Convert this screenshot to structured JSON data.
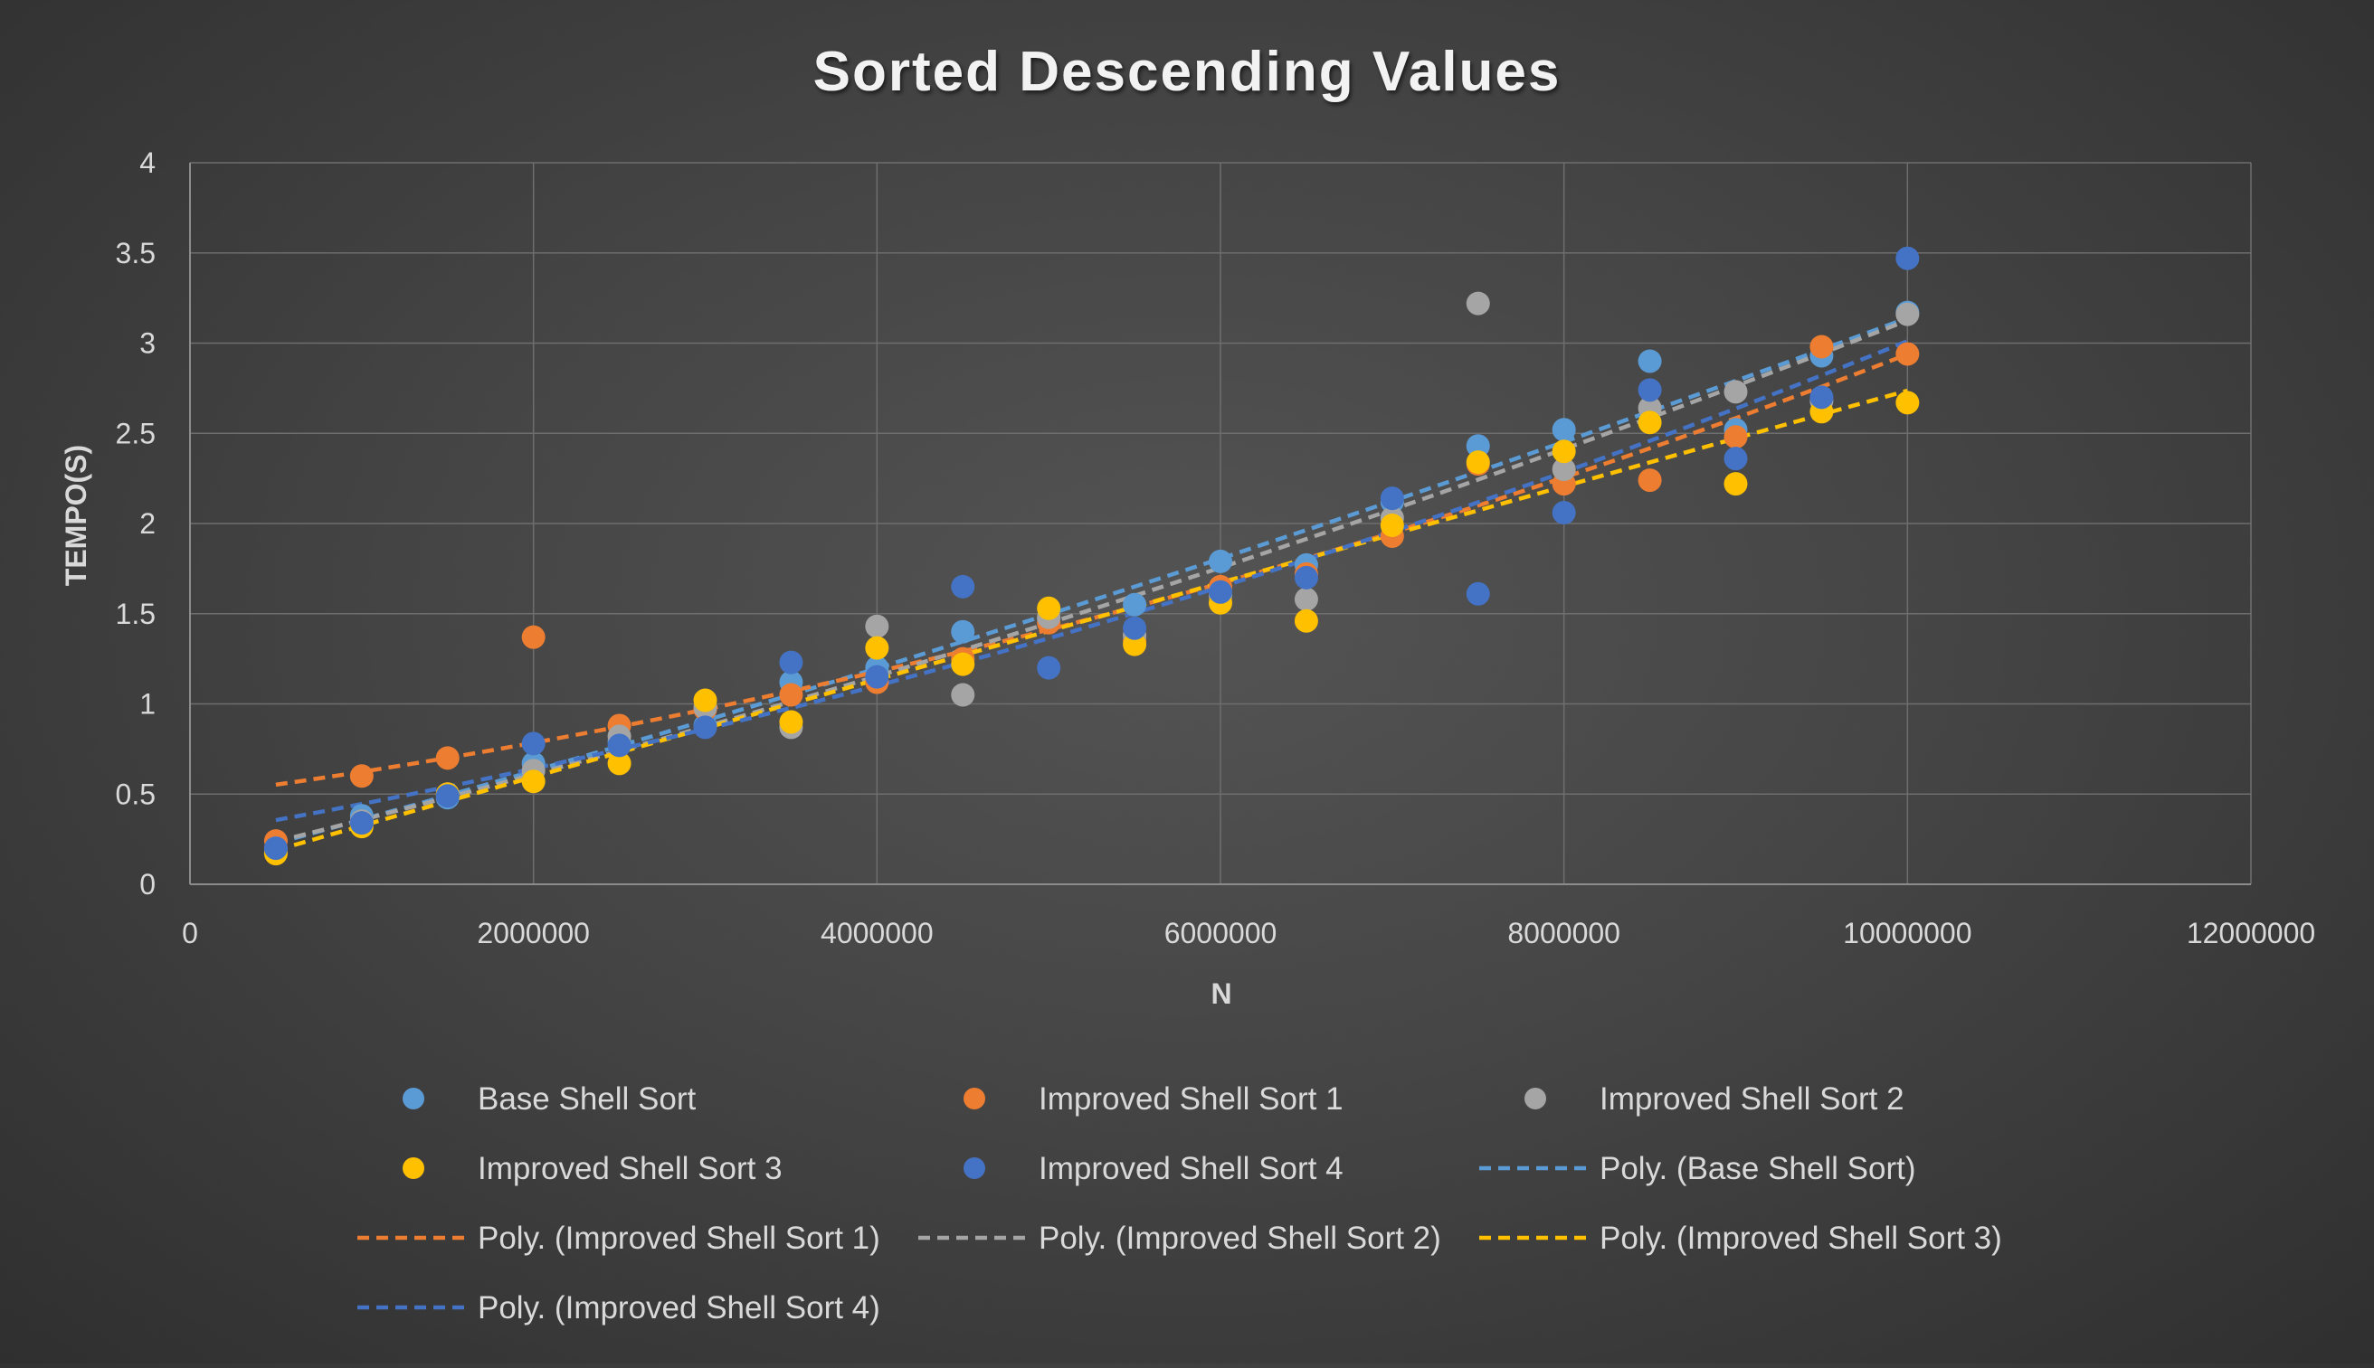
{
  "chart_data": {
    "type": "scatter",
    "title": "Sorted Descending Values",
    "xlabel": "N",
    "ylabel": "TEMPO(S)",
    "xlim": [
      0,
      12000000
    ],
    "ylim": [
      0,
      4
    ],
    "x_ticks": [
      0,
      2000000,
      4000000,
      6000000,
      8000000,
      10000000,
      12000000
    ],
    "x_tick_labels": [
      "0",
      "2000000",
      "4000000",
      "6000000",
      "8000000",
      "10000000",
      "12000000"
    ],
    "y_ticks": [
      0,
      0.5,
      1,
      1.5,
      2,
      2.5,
      3,
      3.5,
      4
    ],
    "y_tick_labels": [
      "0",
      "0.5",
      "1",
      "1.5",
      "2",
      "2.5",
      "3",
      "3.5",
      "4"
    ],
    "grid": true,
    "legend_position": "bottom",
    "x": [
      500000,
      1000000,
      1500000,
      2000000,
      2500000,
      3000000,
      3500000,
      4000000,
      4500000,
      5000000,
      5500000,
      6000000,
      6500000,
      7000000,
      7500000,
      8000000,
      8500000,
      9000000,
      9500000,
      10000000
    ],
    "series": [
      {
        "name": "Base Shell Sort",
        "color": "#5B9BD5",
        "values": [
          0.18,
          0.38,
          0.48,
          0.67,
          0.79,
          0.88,
          1.12,
          1.2,
          1.4,
          1.47,
          1.55,
          1.79,
          1.77,
          2.12,
          2.43,
          2.52,
          2.9,
          2.52,
          2.93,
          3.17
        ]
      },
      {
        "name": "Improved Shell Sort 1",
        "color": "#ED7D31",
        "values": [
          0.24,
          0.6,
          0.7,
          1.37,
          0.88,
          0.97,
          1.05,
          1.12,
          1.25,
          1.45,
          1.35,
          1.65,
          1.72,
          1.93,
          2.33,
          2.22,
          2.24,
          2.48,
          2.98,
          2.94
        ]
      },
      {
        "name": "Improved Shell Sort 2",
        "color": "#A5A5A5",
        "values": [
          0.2,
          0.35,
          0.5,
          0.63,
          0.82,
          0.98,
          0.87,
          1.43,
          1.05,
          1.48,
          1.38,
          1.6,
          1.58,
          2.03,
          3.22,
          2.3,
          2.64,
          2.73,
          2.68,
          3.16
        ]
      },
      {
        "name": "Improved Shell Sort 3",
        "color": "#FFC000",
        "values": [
          0.17,
          0.32,
          0.5,
          0.57,
          0.67,
          1.02,
          0.9,
          1.31,
          1.22,
          1.53,
          1.33,
          1.56,
          1.46,
          1.99,
          2.34,
          2.4,
          2.56,
          2.22,
          2.62,
          2.67
        ]
      },
      {
        "name": "Improved Shell Sort 4",
        "color": "#4472C4",
        "values": [
          0.2,
          0.34,
          0.49,
          0.78,
          0.77,
          0.87,
          1.23,
          1.15,
          1.65,
          1.2,
          1.42,
          1.62,
          1.7,
          2.14,
          1.61,
          2.06,
          2.74,
          2.36,
          2.7,
          3.47
        ]
      }
    ],
    "trendlines": [
      {
        "name": "Poly. (Base Shell Sort)",
        "color": "#5B9BD5"
      },
      {
        "name": "Poly. (Improved Shell Sort 1)",
        "color": "#ED7D31"
      },
      {
        "name": "Poly. (Improved Shell Sort 2)",
        "color": "#A5A5A5"
      },
      {
        "name": "Poly. (Improved Shell Sort 3)",
        "color": "#FFC000"
      },
      {
        "name": "Poly. (Improved Shell Sort 4)",
        "color": "#4472C4"
      }
    ]
  }
}
